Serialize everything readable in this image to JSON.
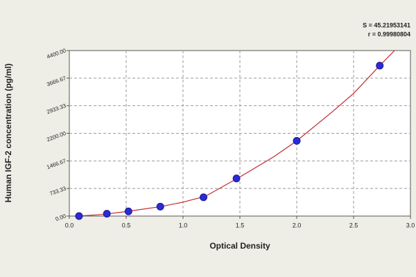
{
  "chart_data": {
    "type": "scatter",
    "annotations": [
      "S = 45.21953141",
      "r = 0.99980804"
    ],
    "x_label": "Optical Density",
    "y_label": "Human IGF-2 concentration (pg/ml)",
    "xlim": [
      0,
      3
    ],
    "ylim": [
      0,
      4400
    ],
    "xticks": [
      {
        "value": 0,
        "label": "0.0"
      },
      0.5,
      {
        "value": 1,
        "label": "1.0"
      },
      1.5,
      {
        "value": 2,
        "label": "2.0"
      },
      2.5,
      {
        "value": 3,
        "label": "3.0"
      }
    ],
    "yticks": [
      {
        "value": 0,
        "label": "0.00"
      },
      733.33,
      1466.67,
      {
        "value": 2200,
        "label": "2200.00"
      },
      2933.33,
      3666.67,
      {
        "value": 4400,
        "label": "4400.00"
      }
    ],
    "grid": true,
    "series": [
      {
        "marker": "circle",
        "color": "#2b2bd6",
        "x": [
          0.085,
          0.33,
          0.52,
          0.8,
          1.18,
          1.47,
          2.0,
          2.73
        ],
        "values": [
          0,
          62.5,
          125,
          250,
          500,
          1000,
          2000,
          4000
        ]
      },
      {
        "marker": "none",
        "color": "#c0282d",
        "x": [
          0.08,
          0.3,
          0.5,
          0.8,
          1.0,
          1.2,
          1.5,
          1.8,
          2.0,
          2.3,
          2.5,
          2.73,
          2.86
        ],
        "values": [
          0,
          45,
          120,
          250,
          370,
          530,
          1040,
          1580,
          2000,
          2740,
          3260,
          4000,
          4400
        ]
      }
    ]
  }
}
